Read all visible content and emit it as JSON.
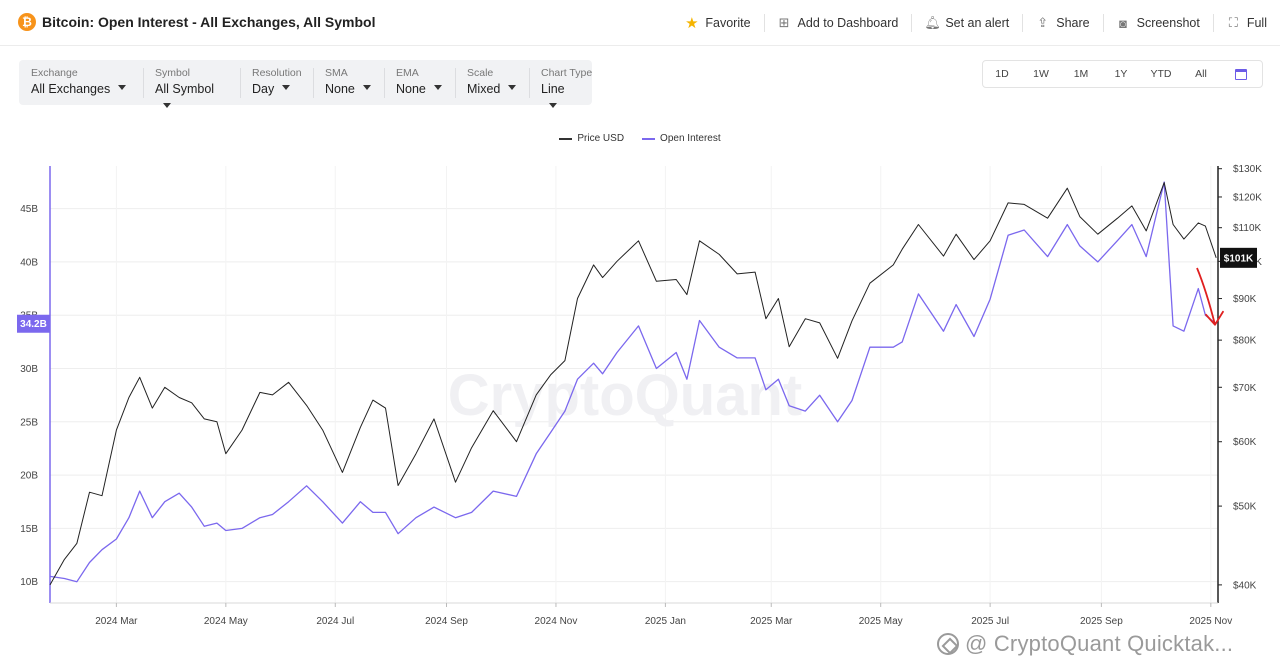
{
  "header": {
    "coin_symbol": "₿",
    "title": "Bitcoin: Open Interest - All Exchanges, All Symbol",
    "actions": [
      {
        "label": "Favorite",
        "icon": "star-icon"
      },
      {
        "label": "Add to Dashboard",
        "icon": "dashboard-add-icon"
      },
      {
        "label": "Set an alert",
        "icon": "bell-icon"
      },
      {
        "label": "Share",
        "icon": "share-icon"
      },
      {
        "label": "Screenshot",
        "icon": "camera-icon"
      },
      {
        "label": "Full",
        "icon": "fullscreen-icon"
      }
    ]
  },
  "controls": [
    {
      "label": "Exchange",
      "value": "All Exchanges"
    },
    {
      "label": "Symbol",
      "value": "All Symbol"
    },
    {
      "label": "Resolution",
      "value": "Day"
    },
    {
      "label": "SMA",
      "value": "None"
    },
    {
      "label": "EMA",
      "value": "None"
    },
    {
      "label": "Scale",
      "value": "Mixed"
    },
    {
      "label": "Chart Type",
      "value": "Line"
    }
  ],
  "ranges": [
    "1D",
    "1W",
    "1M",
    "1Y",
    "YTD",
    "All"
  ],
  "watermark": "CryptoQuant",
  "bottom_watermark": "@ CryptoQuant Quicktak...",
  "chart_data": {
    "type": "line",
    "legend_placement": "top-center",
    "grid": true,
    "colors": {
      "price": "#222222",
      "open_interest": "#7b68ee",
      "annotation_arrow": "#e02020"
    },
    "x_tick_labels": [
      "2024 Mar",
      "2024 May",
      "2024 Jul",
      "2024 Sep",
      "2024 Nov",
      "2025 Jan",
      "2025 Mar",
      "2025 May",
      "2025 Jul",
      "2025 Sep",
      "2025 Nov"
    ],
    "x_range": [
      "2024-01-24",
      "2025-11-05"
    ],
    "left_axis": {
      "ticks": [
        "10B",
        "15B",
        "20B",
        "25B",
        "30B",
        "35B",
        "40B",
        "45B"
      ],
      "range": [
        8,
        49
      ],
      "unit": "USD billions"
    },
    "right_axis": {
      "scale": "log",
      "ticks": [
        "$40K",
        "$50K",
        "$60K",
        "$70K",
        "$80K",
        "$90K",
        "$100K",
        "$110K",
        "$120K",
        "$130K"
      ],
      "range": [
        38000,
        131000
      ]
    },
    "current_labels": {
      "open_interest": "34.2B",
      "price": "$101K"
    },
    "series": [
      {
        "name": "Price USD",
        "axis": "right",
        "points": [
          [
            "2024-01-24",
            40000
          ],
          [
            "2024-02-01",
            43000
          ],
          [
            "2024-02-08",
            45000
          ],
          [
            "2024-02-15",
            52000
          ],
          [
            "2024-02-22",
            51500
          ],
          [
            "2024-03-01",
            62000
          ],
          [
            "2024-03-08",
            68000
          ],
          [
            "2024-03-14",
            72000
          ],
          [
            "2024-03-21",
            66000
          ],
          [
            "2024-03-28",
            70000
          ],
          [
            "2024-04-05",
            68000
          ],
          [
            "2024-04-12",
            67000
          ],
          [
            "2024-04-19",
            64000
          ],
          [
            "2024-04-26",
            63500
          ],
          [
            "2024-05-01",
            58000
          ],
          [
            "2024-05-10",
            62000
          ],
          [
            "2024-05-20",
            69000
          ],
          [
            "2024-05-27",
            68500
          ],
          [
            "2024-06-05",
            71000
          ],
          [
            "2024-06-15",
            66500
          ],
          [
            "2024-06-24",
            62000
          ],
          [
            "2024-07-05",
            55000
          ],
          [
            "2024-07-15",
            62500
          ],
          [
            "2024-07-22",
            67500
          ],
          [
            "2024-07-29",
            66000
          ],
          [
            "2024-08-05",
            53000
          ],
          [
            "2024-08-15",
            58000
          ],
          [
            "2024-08-25",
            64000
          ],
          [
            "2024-09-06",
            53500
          ],
          [
            "2024-09-15",
            59000
          ],
          [
            "2024-09-27",
            65500
          ],
          [
            "2024-10-10",
            60000
          ],
          [
            "2024-10-21",
            68500
          ],
          [
            "2024-10-29",
            72500
          ],
          [
            "2024-11-06",
            75500
          ],
          [
            "2024-11-13",
            90000
          ],
          [
            "2024-11-22",
            99000
          ],
          [
            "2024-11-27",
            95500
          ],
          [
            "2024-12-05",
            100000
          ],
          [
            "2024-12-17",
            106000
          ],
          [
            "2024-12-27",
            94500
          ],
          [
            "2025-01-07",
            95000
          ],
          [
            "2025-01-13",
            91000
          ],
          [
            "2025-01-20",
            106000
          ],
          [
            "2025-01-31",
            102000
          ],
          [
            "2025-02-10",
            96500
          ],
          [
            "2025-02-20",
            97000
          ],
          [
            "2025-02-26",
            85000
          ],
          [
            "2025-03-05",
            90000
          ],
          [
            "2025-03-11",
            78500
          ],
          [
            "2025-03-20",
            85000
          ],
          [
            "2025-03-28",
            84000
          ],
          [
            "2025-04-07",
            76000
          ],
          [
            "2025-04-15",
            84500
          ],
          [
            "2025-04-25",
            94000
          ],
          [
            "2025-05-08",
            99000
          ],
          [
            "2025-05-13",
            103500
          ],
          [
            "2025-05-22",
            111000
          ],
          [
            "2025-06-05",
            101500
          ],
          [
            "2025-06-12",
            108000
          ],
          [
            "2025-06-22",
            100500
          ],
          [
            "2025-07-01",
            106000
          ],
          [
            "2025-07-11",
            118000
          ],
          [
            "2025-07-20",
            117500
          ],
          [
            "2025-08-02",
            113000
          ],
          [
            "2025-08-13",
            123000
          ],
          [
            "2025-08-20",
            113500
          ],
          [
            "2025-08-30",
            108000
          ],
          [
            "2025-09-10",
            113000
          ],
          [
            "2025-09-18",
            117000
          ],
          [
            "2025-09-26",
            109000
          ],
          [
            "2025-10-06",
            125000
          ],
          [
            "2025-10-11",
            111000
          ],
          [
            "2025-10-17",
            106500
          ],
          [
            "2025-10-25",
            111500
          ],
          [
            "2025-10-29",
            110500
          ],
          [
            "2025-11-04",
            101000
          ]
        ]
      },
      {
        "name": "Open Interest",
        "axis": "left",
        "points": [
          [
            "2024-01-24",
            10.5
          ],
          [
            "2024-02-01",
            10.3
          ],
          [
            "2024-02-08",
            10.0
          ],
          [
            "2024-02-15",
            11.8
          ],
          [
            "2024-02-22",
            13.0
          ],
          [
            "2024-03-01",
            14.0
          ],
          [
            "2024-03-08",
            16.0
          ],
          [
            "2024-03-14",
            18.5
          ],
          [
            "2024-03-21",
            16.0
          ],
          [
            "2024-03-28",
            17.5
          ],
          [
            "2024-04-05",
            18.3
          ],
          [
            "2024-04-12",
            17.0
          ],
          [
            "2024-04-19",
            15.2
          ],
          [
            "2024-04-26",
            15.5
          ],
          [
            "2024-05-01",
            14.8
          ],
          [
            "2024-05-10",
            15.0
          ],
          [
            "2024-05-20",
            16.0
          ],
          [
            "2024-05-27",
            16.3
          ],
          [
            "2024-06-05",
            17.5
          ],
          [
            "2024-06-15",
            19.0
          ],
          [
            "2024-06-24",
            17.5
          ],
          [
            "2024-07-05",
            15.5
          ],
          [
            "2024-07-15",
            17.5
          ],
          [
            "2024-07-22",
            16.5
          ],
          [
            "2024-07-29",
            16.5
          ],
          [
            "2024-08-05",
            14.5
          ],
          [
            "2024-08-15",
            16.0
          ],
          [
            "2024-08-25",
            17.0
          ],
          [
            "2024-09-06",
            16.0
          ],
          [
            "2024-09-15",
            16.5
          ],
          [
            "2024-09-27",
            18.5
          ],
          [
            "2024-10-10",
            18.0
          ],
          [
            "2024-10-21",
            22.0
          ],
          [
            "2024-10-29",
            24.0
          ],
          [
            "2024-11-06",
            26.0
          ],
          [
            "2024-11-13",
            29.0
          ],
          [
            "2024-11-22",
            30.5
          ],
          [
            "2024-11-27",
            29.5
          ],
          [
            "2024-12-05",
            31.5
          ],
          [
            "2024-12-17",
            34.0
          ],
          [
            "2024-12-27",
            30.0
          ],
          [
            "2025-01-07",
            31.5
          ],
          [
            "2025-01-13",
            29.0
          ],
          [
            "2025-01-20",
            34.5
          ],
          [
            "2025-01-31",
            32.0
          ],
          [
            "2025-02-10",
            31.0
          ],
          [
            "2025-02-20",
            31.0
          ],
          [
            "2025-02-26",
            28.0
          ],
          [
            "2025-03-05",
            29.0
          ],
          [
            "2025-03-11",
            26.5
          ],
          [
            "2025-03-20",
            26.0
          ],
          [
            "2025-03-28",
            27.5
          ],
          [
            "2025-04-07",
            25.0
          ],
          [
            "2025-04-15",
            27.0
          ],
          [
            "2025-04-25",
            32.0
          ],
          [
            "2025-05-08",
            32.0
          ],
          [
            "2025-05-13",
            32.5
          ],
          [
            "2025-05-22",
            37.0
          ],
          [
            "2025-06-05",
            33.5
          ],
          [
            "2025-06-12",
            36.0
          ],
          [
            "2025-06-22",
            33.0
          ],
          [
            "2025-07-01",
            36.5
          ],
          [
            "2025-07-11",
            42.5
          ],
          [
            "2025-07-20",
            43.0
          ],
          [
            "2025-08-02",
            40.5
          ],
          [
            "2025-08-13",
            43.5
          ],
          [
            "2025-08-20",
            41.5
          ],
          [
            "2025-08-30",
            40.0
          ],
          [
            "2025-09-10",
            42.0
          ],
          [
            "2025-09-18",
            43.5
          ],
          [
            "2025-09-26",
            40.5
          ],
          [
            "2025-10-06",
            47.5
          ],
          [
            "2025-10-11",
            34.0
          ],
          [
            "2025-10-17",
            33.5
          ],
          [
            "2025-10-25",
            37.5
          ],
          [
            "2025-10-29",
            35.0
          ],
          [
            "2025-11-04",
            34.2
          ]
        ]
      }
    ]
  }
}
